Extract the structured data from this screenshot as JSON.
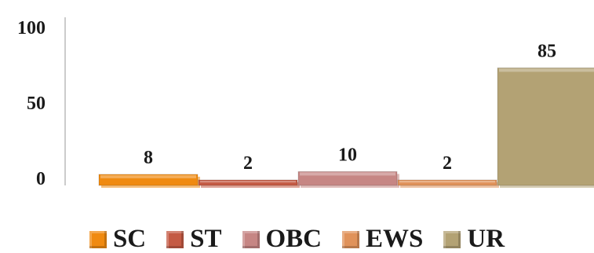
{
  "chart_data": {
    "type": "bar",
    "categories": [
      "SC",
      "ST",
      "OBC",
      "EWS",
      "UR"
    ],
    "values": [
      8,
      2,
      10,
      2,
      85
    ],
    "data_labels": [
      "8",
      "2",
      "10",
      "2",
      "85"
    ],
    "yticks": [
      "0",
      "50",
      "100"
    ],
    "ylim": [
      0,
      100
    ],
    "colors": [
      "#f08a10",
      "#c45a44",
      "#c68684",
      "#e0925a",
      "#b3a274"
    ],
    "legend": {
      "position": "bottom",
      "items": [
        {
          "label": "SC",
          "color": "#f08a10"
        },
        {
          "label": "ST",
          "color": "#c45a44"
        },
        {
          "label": "OBC",
          "color": "#c68684"
        },
        {
          "label": "EWS",
          "color": "#e0925a"
        },
        {
          "label": "UR",
          "color": "#b3a274"
        }
      ]
    },
    "grid": false
  }
}
